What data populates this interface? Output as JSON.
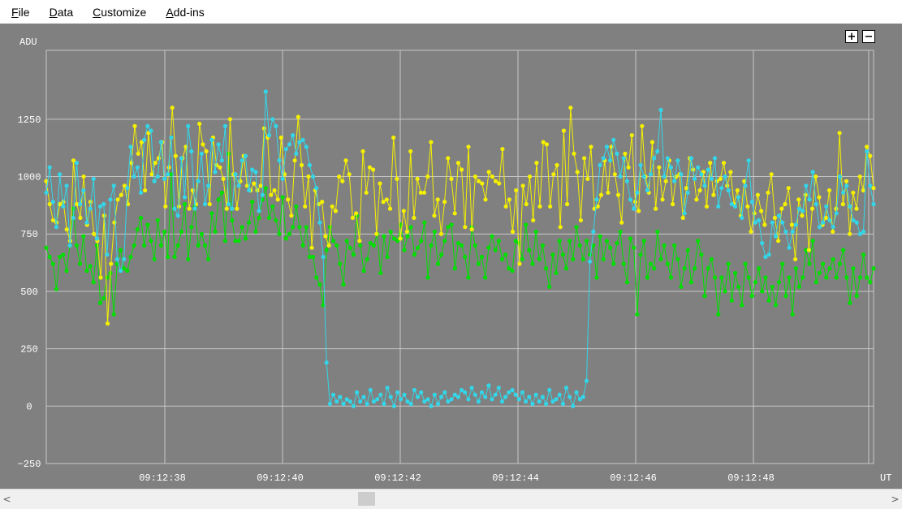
{
  "menu": {
    "file": {
      "mnemonic": "F",
      "rest": "ile"
    },
    "data": {
      "mnemonic": "D",
      "rest": "ata"
    },
    "customize": {
      "mnemonic": "C",
      "rest": "ustomize"
    },
    "addins": {
      "mnemonic": "A",
      "rest": "dd-ins"
    }
  },
  "zoom": {
    "in_label": "+",
    "out_label": "−"
  },
  "scrollbar": {
    "left_arrow": "<",
    "right_arrow": ">",
    "thumb_position": 0.4
  },
  "icons": {
    "zoom_in": "plus-icon",
    "zoom_out": "minus-icon",
    "left": "chevron-left-icon",
    "right": "chevron-right-icon"
  },
  "colors": {
    "background": "#808080",
    "grid": "#c8c8c8",
    "cyan": "#33d6e8",
    "yellow": "#f5f000",
    "green": "#00e000"
  },
  "chart_data": {
    "type": "line",
    "ylabel": "ADU",
    "xlabel": "UT",
    "ylim": [
      -250,
      1550
    ],
    "yticks": [
      -250,
      0,
      250,
      500,
      750,
      1000,
      1250
    ],
    "xticks": [
      "09:12:38",
      "09:12:40",
      "09:12:42",
      "09:12:44",
      "09:12:46",
      "09:12:48"
    ],
    "grid": true,
    "series": [
      {
        "color": "cyan",
        "values": [
          930,
          1040,
          890,
          780,
          1010,
          870,
          960,
          700,
          820,
          1060,
          880,
          940,
          800,
          860,
          990,
          730,
          870,
          880,
          660,
          900,
          960,
          640,
          590,
          640,
          950,
          1130,
          1000,
          1040,
          930,
          1160,
          1220,
          1200,
          980,
          1000,
          1150,
          990,
          1010,
          1170,
          860,
          830,
          1080,
          910,
          1220,
          1110,
          860,
          980,
          1100,
          880,
          960,
          1160,
          1020,
          1140,
          1070,
          1220,
          880,
          860,
          1010,
          960,
          1070,
          1090,
          940,
          1030,
          1020,
          850,
          920,
          1370,
          1180,
          1250,
          1220,
          1070,
          990,
          1120,
          1140,
          1180,
          1100,
          1150,
          1160,
          1130,
          1050,
          1000,
          950,
          800,
          650,
          190,
          10,
          50,
          20,
          40,
          10,
          30,
          20,
          0,
          60,
          20,
          40,
          10,
          70,
          20,
          30,
          50,
          10,
          80,
          40,
          0,
          60,
          30,
          50,
          20,
          10,
          70,
          40,
          60,
          20,
          30,
          0,
          50,
          10,
          40,
          60,
          20,
          30,
          50,
          40,
          70,
          60,
          30,
          80,
          50,
          20,
          60,
          40,
          90,
          30,
          50,
          80,
          20,
          40,
          60,
          70,
          50,
          30,
          60,
          20,
          40,
          10,
          50,
          20,
          40,
          10,
          70,
          20,
          30,
          50,
          10,
          80,
          40,
          0,
          60,
          30,
          40,
          110,
          630,
          760,
          900,
          1050,
          1080,
          1130,
          1070,
          1160,
          1100,
          1000,
          1080,
          980,
          900,
          860,
          930,
          1050,
          1000,
          940,
          1010,
          1080,
          1110,
          1290,
          1000,
          1080,
          1040,
          980,
          1070,
          1010,
          840,
          930,
          1080,
          990,
          1040,
          1010,
          960,
          1030,
          990,
          1080,
          870,
          950,
          1000,
          940,
          880,
          870,
          910,
          820,
          960,
          1070,
          890,
          800,
          810,
          710,
          650,
          660,
          800,
          740,
          830,
          800,
          760,
          690,
          760,
          790,
          860,
          850,
          960,
          900,
          1020,
          880,
          780,
          800,
          870,
          810,
          780,
          840,
          1000,
          930,
          960,
          870,
          810,
          800,
          750,
          760,
          1110,
          960,
          880
        ]
      },
      {
        "color": "yellow",
        "values": [
          980,
          880,
          810,
          800,
          880,
          890,
          770,
          720,
          1070,
          880,
          820,
          1000,
          790,
          890,
          750,
          720,
          560,
          830,
          360,
          620,
          800,
          900,
          920,
          960,
          880,
          1060,
          1220,
          1100,
          1150,
          940,
          1190,
          1010,
          1060,
          1080,
          1150,
          870,
          1040,
          1300,
          1090,
          870,
          1080,
          1130,
          860,
          940,
          880,
          1230,
          1140,
          1110,
          880,
          1170,
          1050,
          1040,
          990,
          860,
          1250,
          1010,
          860,
          980,
          1090,
          960,
          940,
          970,
          940,
          960,
          1210,
          1170,
          920,
          940,
          900,
          1170,
          1010,
          900,
          830,
          1070,
          1260,
          1050,
          870,
          1000,
          690,
          940,
          880,
          890,
          740,
          700,
          870,
          850,
          1000,
          980,
          1070,
          1010,
          820,
          840,
          720,
          1110,
          930,
          1040,
          1030,
          750,
          970,
          890,
          900,
          860,
          1170,
          990,
          730,
          850,
          760,
          1110,
          820,
          990,
          930,
          930,
          1000,
          1150,
          830,
          900,
          750,
          890,
          1080,
          990,
          840,
          1060,
          1030,
          780,
          1130,
          770,
          1000,
          980,
          970,
          900,
          1020,
          1000,
          980,
          970,
          1120,
          870,
          900,
          760,
          940,
          620,
          960,
          880,
          1000,
          810,
          1060,
          870,
          1150,
          1140,
          870,
          1010,
          1050,
          780,
          1200,
          880,
          1300,
          1100,
          1020,
          810,
          1080,
          990,
          1130,
          860,
          870,
          920,
          1070,
          930,
          1130,
          1010,
          920,
          800,
          1100,
          1040,
          1180,
          890,
          850,
          1220,
          1000,
          930,
          1150,
          860,
          1040,
          900,
          980,
          1070,
          880,
          1000,
          1010,
          820,
          950,
          1080,
          1030,
          900,
          940,
          1020,
          870,
          1060,
          920,
          980,
          990,
          1060,
          960,
          1020,
          880,
          940,
          830,
          980,
          870,
          760,
          840,
          920,
          850,
          790,
          930,
          1010,
          820,
          720,
          860,
          880,
          950,
          790,
          640,
          900,
          830,
          920,
          680,
          860,
          1000,
          910,
          790,
          820,
          940,
          760,
          860,
          1190,
          880,
          980,
          750,
          930,
          860,
          1000,
          940,
          1130,
          1090,
          950
        ]
      },
      {
        "color": "green",
        "values": [
          690,
          650,
          620,
          510,
          650,
          660,
          590,
          700,
          860,
          700,
          620,
          740,
          590,
          610,
          540,
          700,
          450,
          470,
          560,
          580,
          400,
          620,
          680,
          600,
          590,
          650,
          700,
          770,
          820,
          700,
          790,
          720,
          640,
          810,
          700,
          760,
          650,
          1010,
          650,
          700,
          760,
          880,
          640,
          780,
          870,
          700,
          750,
          700,
          640,
          840,
          760,
          900,
          930,
          720,
          1100,
          810,
          720,
          720,
          780,
          730,
          800,
          890,
          760,
          820,
          900,
          950,
          820,
          870,
          810,
          750,
          910,
          730,
          750,
          780,
          870,
          780,
          700,
          780,
          650,
          650,
          560,
          530,
          440,
          680,
          780,
          720,
          700,
          620,
          530,
          720,
          690,
          660,
          830,
          700,
          590,
          640,
          710,
          700,
          750,
          580,
          740,
          650,
          760,
          730,
          720,
          790,
          680,
          740,
          780,
          660,
          690,
          720,
          800,
          560,
          700,
          760,
          620,
          660,
          720,
          780,
          790,
          600,
          710,
          700,
          650,
          560,
          780,
          700,
          620,
          650,
          560,
          690,
          740,
          680,
          720,
          640,
          660,
          600,
          590,
          720,
          710,
          640,
          790,
          680,
          620,
          760,
          640,
          700,
          600,
          520,
          660,
          580,
          720,
          660,
          600,
          720,
          640,
          780,
          700,
          640,
          720,
          660,
          700,
          560,
          740,
          640,
          720,
          690,
          620,
          710,
          760,
          620,
          540,
          730,
          690,
          400,
          660,
          720,
          560,
          620,
          600,
          760,
          640,
          700,
          620,
          560,
          700,
          640,
          520,
          600,
          680,
          540,
          600,
          720,
          660,
          480,
          600,
          640,
          560,
          400,
          560,
          500,
          620,
          460,
          580,
          520,
          440,
          620,
          560,
          480,
          540,
          600,
          500,
          560,
          460,
          520,
          440,
          540,
          620,
          480,
          560,
          400,
          600,
          520,
          560,
          680,
          620,
          720,
          540,
          580,
          620,
          560,
          600,
          640,
          560,
          620,
          680,
          560,
          450,
          600,
          480,
          560,
          660,
          560,
          540,
          600
        ]
      }
    ]
  }
}
